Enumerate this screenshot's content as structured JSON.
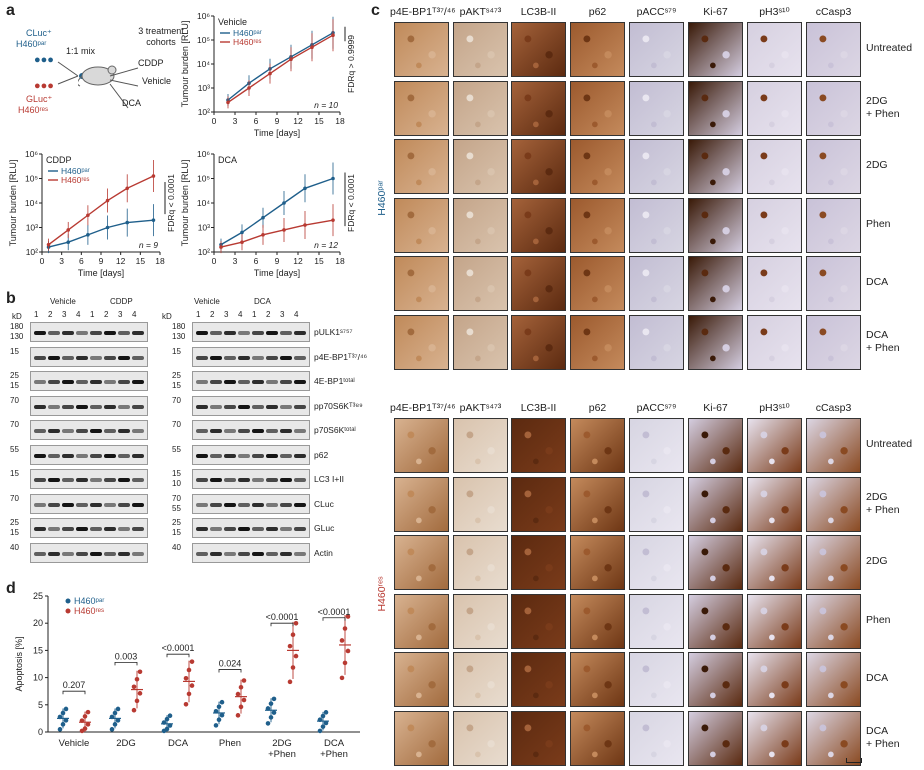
{
  "panels": {
    "a": "a",
    "b": "b",
    "c": "c",
    "d": "d"
  },
  "schematic": {
    "cluc": "CLuc⁺",
    "h460par": "H460ᵖᵃʳ",
    "gluc": "GLuc⁺",
    "h460res": "H460ʳᵉˢ",
    "mix": "1:1 mix",
    "cohorts": "3 treatment cohorts",
    "arms": [
      "CDDP",
      "Vehicle",
      "DCA"
    ]
  },
  "chart_data": [
    {
      "type": "line",
      "title": "Vehicle",
      "xlabel": "Time [days]",
      "ylabel": "Tumour burden [RLU]",
      "x_ticks": [
        0,
        3,
        6,
        9,
        12,
        15,
        18
      ],
      "y_ticks": [
        "10²",
        "10³",
        "10⁴",
        "10⁵",
        "10⁶"
      ],
      "ylim_log10": [
        2,
        6
      ],
      "series": [
        {
          "name": "H460ᵖᵃʳ",
          "color": "#1f5f8b",
          "x": [
            2,
            5,
            8,
            11,
            14,
            17
          ],
          "y_log10": [
            2.5,
            3.2,
            3.8,
            4.3,
            4.8,
            5.3
          ]
        },
        {
          "name": "H460ʳᵉˢ",
          "color": "#b83a32",
          "x": [
            2,
            5,
            8,
            11,
            14,
            17
          ],
          "y_log10": [
            2.4,
            3.0,
            3.6,
            4.2,
            4.7,
            5.2
          ]
        }
      ],
      "annotation": "FDRq > 0.9999",
      "n": "n = 10"
    },
    {
      "type": "line",
      "title": "CDDP",
      "xlabel": "Time [days]",
      "ylabel": "Tumour burden [RLU]",
      "x_ticks": [
        0,
        3,
        6,
        9,
        12,
        15,
        18
      ],
      "y_ticks": [
        "10²",
        "10³",
        "10⁴",
        "10⁵",
        "10⁶"
      ],
      "ylim_log10": [
        2,
        6
      ],
      "series": [
        {
          "name": "H460ᵖᵃʳ",
          "color": "#1f5f8b",
          "x": [
            1,
            4,
            7,
            10,
            13,
            17
          ],
          "y_log10": [
            2.2,
            2.4,
            2.7,
            3.0,
            3.2,
            3.3
          ]
        },
        {
          "name": "H460ʳᵉˢ",
          "color": "#b83a32",
          "x": [
            1,
            4,
            7,
            10,
            13,
            17
          ],
          "y_log10": [
            2.3,
            2.9,
            3.5,
            4.1,
            4.6,
            5.1
          ]
        }
      ],
      "annotation": "FDRq < 0.0001",
      "n": "n = 9"
    },
    {
      "type": "line",
      "title": "DCA",
      "xlabel": "Time [days]",
      "ylabel": "Tumour burden [RLU]",
      "x_ticks": [
        0,
        3,
        6,
        9,
        12,
        15,
        18
      ],
      "y_ticks": [
        "10²",
        "10³",
        "10⁴",
        "10⁵",
        "10⁶"
      ],
      "ylim_log10": [
        2,
        6
      ],
      "series": [
        {
          "name": "H460ᵖᵃʳ",
          "color": "#1f5f8b",
          "x": [
            1,
            4,
            7,
            10,
            13,
            17
          ],
          "y_log10": [
            2.3,
            2.8,
            3.4,
            4.0,
            4.6,
            5.0
          ]
        },
        {
          "name": "H460ʳᵉˢ",
          "color": "#b83a32",
          "x": [
            1,
            4,
            7,
            10,
            13,
            17
          ],
          "y_log10": [
            2.2,
            2.4,
            2.7,
            2.9,
            3.1,
            3.3
          ]
        }
      ],
      "annotation": "FDRq < 0.0001",
      "n": "n = 12"
    },
    {
      "type": "scatter",
      "title": "",
      "ylabel": "Apoptosis [%]",
      "categories": [
        "Vehicle",
        "2DG",
        "DCA",
        "Phen",
        "2DG +Phen",
        "DCA +Phen"
      ],
      "y_ticks": [
        0,
        5,
        10,
        15,
        20,
        25
      ],
      "ylim": [
        0,
        25
      ],
      "series": [
        {
          "name": "H460ᵖᵃʳ",
          "color": "#1f5f8b",
          "means": [
            2.5,
            2.5,
            1.5,
            3.5,
            4.0,
            2.0
          ]
        },
        {
          "name": "H460ʳᵉˢ",
          "color": "#b83a32",
          "means": [
            1.8,
            7.8,
            9.3,
            6.5,
            15.0,
            16.0
          ]
        }
      ],
      "p_values": [
        "0.207",
        "0.003",
        "<0.0001",
        "0.024",
        "<0.0001",
        "<0.0001"
      ]
    }
  ],
  "blot": {
    "kd": "kD",
    "left_groups": [
      "Vehicle",
      "CDDP"
    ],
    "right_groups": [
      "Vehicle",
      "DCA"
    ],
    "lanes": [
      "1",
      "2",
      "3",
      "4",
      "1",
      "2",
      "3",
      "4"
    ],
    "proteins": [
      "pULK1ˢ⁷⁵⁷",
      "p4E-BP1ᵀ³⁷/⁴⁶",
      "4E-BP1ᵗᵒᵗᵃˡ",
      "pp70S6Kᵀ³⁸⁹",
      "p70S6Kᵗᵒᵗᵃˡ",
      "p62",
      "LC3 I+II",
      "CLuc",
      "GLuc",
      "Actin"
    ],
    "left_mw": [
      [
        "180",
        "130"
      ],
      [
        "15"
      ],
      [
        "25",
        "15"
      ],
      [
        "70"
      ],
      [
        "70"
      ],
      [
        "55"
      ],
      [
        "15"
      ],
      [
        "70"
      ],
      [
        "25",
        "15"
      ],
      [
        "40"
      ]
    ],
    "right_mw": [
      [
        "180",
        "130"
      ],
      [
        "15"
      ],
      [
        "25",
        "15"
      ],
      [
        "70"
      ],
      [
        "70"
      ],
      [
        "55"
      ],
      [
        "15",
        "10"
      ],
      [
        "70",
        "55"
      ],
      [
        "25",
        "15"
      ],
      [
        "40"
      ]
    ]
  },
  "ihc": {
    "columns": [
      "p4E-BP1ᵀ³⁷/⁴⁶",
      "pAKTˢ⁴⁷³",
      "LC3B-II",
      "p62",
      "pACCˢ⁷⁹",
      "Ki-67",
      "pH3ˢ¹⁰",
      "cCasp3"
    ],
    "rows": [
      "Untreated",
      "2DG\n+ Phen",
      "2DG",
      "Phen",
      "DCA",
      "DCA\n+ Phen"
    ],
    "group_top": "H460ᵖᵃʳ",
    "group_bottom": "H460ʳᵉˢ"
  }
}
